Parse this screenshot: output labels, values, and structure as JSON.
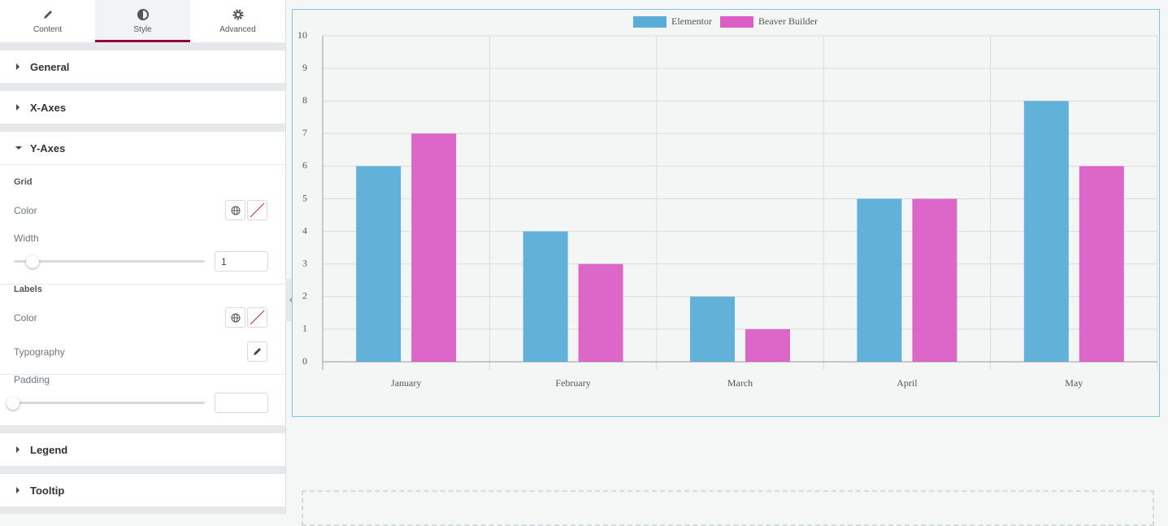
{
  "panel": {
    "tabs": [
      "Content",
      "Style",
      "Advanced"
    ],
    "sections": [
      {
        "title": "General"
      },
      {
        "title": "X-Axes"
      },
      {
        "title": "Y-Axes",
        "groups": [
          {
            "title": "Grid",
            "controls": [
              {
                "label": "Color"
              },
              {
                "label": "Width",
                "value": 1
              }
            ]
          },
          {
            "title": "Labels",
            "controls": [
              {
                "label": "Color"
              },
              {
                "label": "Typography"
              },
              {
                "label": "Padding"
              }
            ]
          }
        ]
      },
      {
        "title": "Legend"
      },
      {
        "title": "Tooltip"
      }
    ]
  },
  "chart_data": {
    "type": "bar",
    "categories": [
      "January",
      "February",
      "March",
      "April",
      "May"
    ],
    "series": [
      {
        "name": "Elementor",
        "color": "#5aadd6",
        "values": [
          6,
          4,
          2,
          5,
          8
        ]
      },
      {
        "name": "Beaver Builder",
        "color": "#db5fc6",
        "values": [
          7,
          3,
          1,
          5,
          6
        ]
      }
    ],
    "ylim": [
      0,
      10
    ],
    "yticks": [
      0,
      1,
      2,
      3,
      4,
      5,
      6,
      7,
      8,
      9,
      10
    ],
    "grid": true,
    "legend": "top"
  }
}
